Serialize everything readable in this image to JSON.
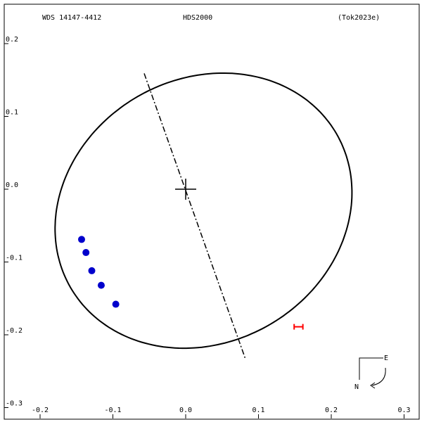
{
  "header": {
    "wds_id": "WDS 14147-4412",
    "discoverer": "HDS2000",
    "reference": "(Tok2023e)"
  },
  "compass": {
    "east_label": "E",
    "north_label": "N"
  },
  "chart_data": {
    "type": "scatter",
    "title": "",
    "xlabel": "",
    "ylabel": "",
    "xlim": [
      -0.2,
      0.3
    ],
    "ylim": [
      -0.3,
      0.2
    ],
    "x_ticks": [
      {
        "value": -0.2,
        "label": "-0.2"
      },
      {
        "value": -0.1,
        "label": "-0.1"
      },
      {
        "value": 0.0,
        "label": "0.0"
      },
      {
        "value": 0.1,
        "label": "0.1"
      },
      {
        "value": 0.2,
        "label": "0.2"
      },
      {
        "value": 0.3,
        "label": "0.3"
      }
    ],
    "y_ticks": [
      {
        "value": 0.2,
        "label": "0.2"
      },
      {
        "value": 0.1,
        "label": "0.1"
      },
      {
        "value": 0.0,
        "label": "0.0"
      },
      {
        "value": -0.1,
        "label": "-0.1"
      },
      {
        "value": -0.2,
        "label": "-0.2"
      },
      {
        "value": -0.3,
        "label": "-0.3"
      }
    ],
    "orbit_ellipse": {
      "center": [
        0.0245,
        -0.0295
      ],
      "semi_axes": [
        0.211,
        0.181
      ],
      "rotation_deg": -30,
      "color": "#000000"
    },
    "line_of_nodes": {
      "from": [
        -0.057,
        0.159
      ],
      "to": [
        0.082,
        -0.233
      ],
      "style": "dash-dot",
      "color": "#000000"
    },
    "primary_star": {
      "x": 0.0,
      "y": 0.0,
      "marker": "cross"
    },
    "observations": {
      "color": "#0000cc",
      "points": [
        {
          "x": -0.143,
          "y": -0.069
        },
        {
          "x": -0.137,
          "y": -0.087
        },
        {
          "x": -0.129,
          "y": -0.112
        },
        {
          "x": -0.116,
          "y": -0.132
        },
        {
          "x": -0.096,
          "y": -0.158
        }
      ]
    },
    "predicted_position": {
      "x": 0.155,
      "y": -0.189,
      "err_x": 0.006,
      "color": "#ff0000"
    }
  }
}
